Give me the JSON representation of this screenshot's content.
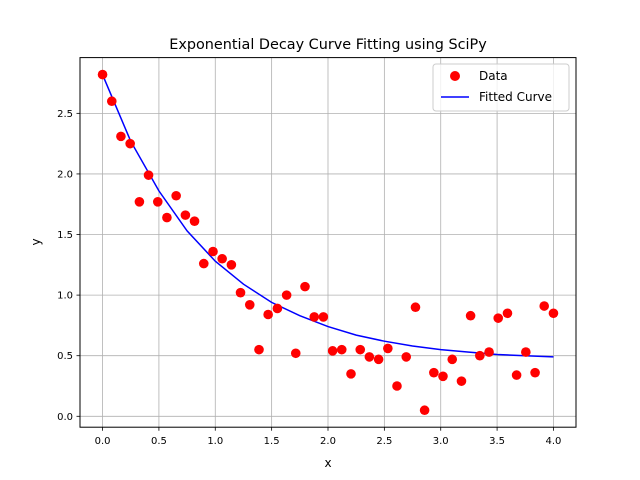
{
  "chart_data": {
    "type": "scatter",
    "title": "Exponential Decay Curve Fitting using SciPy",
    "xlabel": "x",
    "ylabel": "y",
    "xlim": [
      -0.2,
      4.2
    ],
    "ylim": [
      -0.09,
      2.96
    ],
    "xticks": [
      0.0,
      0.5,
      1.0,
      1.5,
      2.0,
      2.5,
      3.0,
      3.5,
      4.0
    ],
    "xtick_labels": [
      "0.0",
      "0.5",
      "1.0",
      "1.5",
      "2.0",
      "2.5",
      "3.0",
      "3.5",
      "4.0"
    ],
    "yticks": [
      0.0,
      0.5,
      1.0,
      1.5,
      2.0,
      2.5
    ],
    "ytick_labels": [
      "0.0",
      "0.5",
      "1.0",
      "1.5",
      "2.0",
      "2.5"
    ],
    "grid": true,
    "legend_placement": "top-right",
    "series": [
      {
        "name": "Data",
        "kind": "scatter",
        "color": "#ff0000",
        "x": [
          0.0,
          0.082,
          0.163,
          0.245,
          0.327,
          0.408,
          0.49,
          0.571,
          0.653,
          0.735,
          0.816,
          0.898,
          0.98,
          1.061,
          1.143,
          1.224,
          1.306,
          1.388,
          1.469,
          1.551,
          1.633,
          1.714,
          1.796,
          1.878,
          1.959,
          2.041,
          2.122,
          2.204,
          2.286,
          2.367,
          2.449,
          2.531,
          2.612,
          2.694,
          2.776,
          2.857,
          2.939,
          3.02,
          3.102,
          3.184,
          3.265,
          3.347,
          3.429,
          3.51,
          3.592,
          3.673,
          3.755,
          3.837,
          3.918,
          4.0
        ],
        "y": [
          2.82,
          2.6,
          2.31,
          2.25,
          1.77,
          1.99,
          1.77,
          1.64,
          1.82,
          1.66,
          1.61,
          1.26,
          1.36,
          1.3,
          1.25,
          1.02,
          0.92,
          0.55,
          0.84,
          0.89,
          1.0,
          0.52,
          1.07,
          0.82,
          0.82,
          0.54,
          0.55,
          0.35,
          0.55,
          0.49,
          0.47,
          0.56,
          0.25,
          0.49,
          0.9,
          0.05,
          0.36,
          0.33,
          0.47,
          0.29,
          0.83,
          0.5,
          0.53,
          0.81,
          0.85,
          0.34,
          0.53,
          0.36,
          0.91,
          0.85
        ]
      },
      {
        "name": "Fitted Curve",
        "kind": "line",
        "color": "#0000ff",
        "x": [
          0,
          0.25,
          0.5,
          0.75,
          1.0,
          1.25,
          1.5,
          1.75,
          2.0,
          2.25,
          2.5,
          2.75,
          3.0,
          3.25,
          3.5,
          3.75,
          4.0
        ],
        "y": [
          2.82,
          2.27,
          1.86,
          1.53,
          1.28,
          1.09,
          0.94,
          0.83,
          0.74,
          0.67,
          0.62,
          0.58,
          0.55,
          0.53,
          0.51,
          0.5,
          0.49
        ]
      }
    ]
  }
}
